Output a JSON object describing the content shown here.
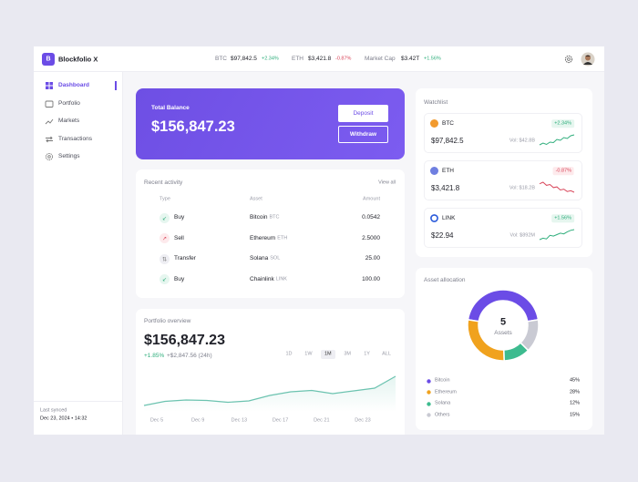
{
  "header": {
    "logo": "B",
    "app_name": "Blockfolio X",
    "tickers": [
      {
        "symbol": "BTC",
        "price": "$97,842.5",
        "change": "+2.34%"
      },
      {
        "symbol": "ETH",
        "price": "$3,421.8",
        "change": "-0.87%"
      },
      {
        "symbol": "Market Cap",
        "price": "$3.42T",
        "change": "+1.56%"
      }
    ]
  },
  "sidebar": {
    "nav": [
      "Dashboard",
      "Portfolio",
      "Markets",
      "Transactions",
      "Settings"
    ],
    "sync_label": "Last synced",
    "sync_time": "Dec 23, 2024 • 14:32"
  },
  "balance": {
    "title": "Total Balance",
    "amount": "$156,847.23",
    "deposit": "Deposit",
    "withdraw": "Withdraw"
  },
  "activity": {
    "title": "Recent activity",
    "view_all": "View all",
    "columns": [
      "Type",
      "Asset",
      "Amount"
    ],
    "rows": [
      {
        "type": "Buy",
        "asset": "Bitcoin",
        "symbol": "BTC",
        "amount": "0.0542"
      },
      {
        "type": "Sell",
        "asset": "Ethereum",
        "symbol": "ETH",
        "amount": "2.5000"
      },
      {
        "type": "Transfer",
        "asset": "Solana",
        "symbol": "SOL",
        "amount": "25.00"
      },
      {
        "type": "Buy",
        "asset": "Chainlink",
        "symbol": "LINK",
        "amount": "100.00"
      }
    ]
  },
  "portfolio": {
    "title": "Portfolio overview",
    "value": "$156,847.23",
    "change": "+1.85%",
    "change_abs": "+$2,847.56 (24h)",
    "ranges": [
      "1D",
      "1W",
      "1M",
      "3M",
      "1Y",
      "ALL"
    ],
    "chart": {
      "color": "#6cc3b0",
      "values": [
        150.4,
        151.3,
        151.6,
        151.5,
        151.1,
        151.4,
        152.6,
        153.4,
        153.7,
        153.0,
        153.6,
        154.2,
        156.8
      ],
      "dates": [
        "Dec 5",
        "Dec 9",
        "Dec 13",
        "Dec 17",
        "Dec 21",
        "Dec 23"
      ]
    }
  },
  "watchlist": {
    "title": "Watchlist",
    "items": [
      {
        "symbol": "BTC",
        "change": "+2.34%",
        "price": "$97,842.5",
        "volume": "Vol: $42.8B",
        "color": "#2fae7c",
        "spark": [
          3,
          3.4,
          3.1,
          3.6,
          3.5,
          4.2,
          4.0,
          4.6,
          4.4,
          5.0,
          5.2
        ]
      },
      {
        "symbol": "ETH",
        "change": "-0.87%",
        "price": "$3,421.8",
        "volume": "Vol: $18.2B",
        "color": "#d9475b",
        "spark": [
          5.2,
          5.4,
          5.0,
          5.1,
          4.7,
          4.8,
          4.4,
          4.5,
          4.2,
          4.3,
          4.1
        ]
      },
      {
        "symbol": "LINK",
        "change": "+1.56%",
        "price": "$22.94",
        "volume": "Vol: $892M",
        "color": "#2fae7c",
        "spark": [
          3.2,
          3.4,
          3.3,
          3.8,
          3.7,
          3.9,
          4.1,
          4.0,
          4.3,
          4.5,
          4.6
        ]
      }
    ]
  },
  "allocation": {
    "title": "Asset allocation",
    "count": "5",
    "count_label": "Assets",
    "names": [
      "Bitcoin",
      "Ethereum",
      "Solana",
      "Others"
    ],
    "values": [
      45,
      28,
      12,
      15
    ],
    "value_labels": [
      "45%",
      "28%",
      "12%",
      "15%"
    ],
    "colors": [
      "#6b4ce6",
      "#f0a21e",
      "#3dbb8f",
      "#c9cad3"
    ]
  }
}
